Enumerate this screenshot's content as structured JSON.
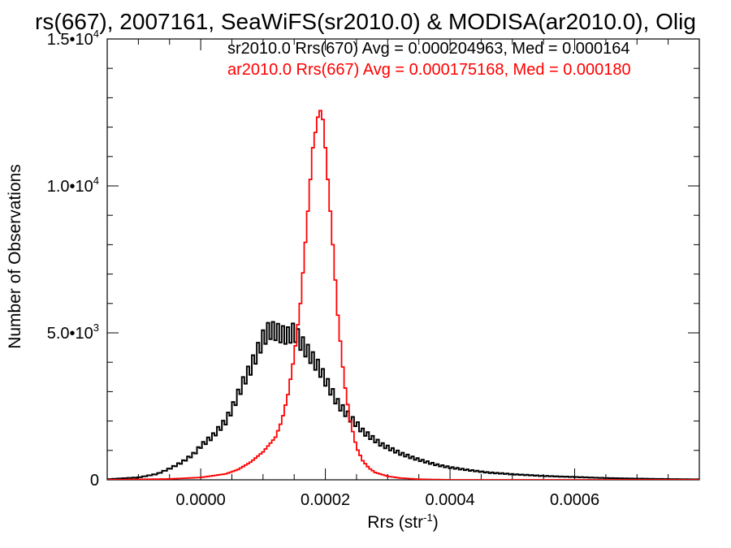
{
  "chart_data": {
    "type": "line",
    "title": "rs(667), 2007161, SeaWiFS(sr2010.0) & MODISA(ar2010.0), Olig",
    "xlabel": "Rrs (str",
    "xlabel_sup": "-1",
    "xlabel_end": ")",
    "ylabel": "Number of Observations",
    "xlim": [
      -0.00015,
      0.0008
    ],
    "ylim": [
      0,
      15000
    ],
    "x_ticks": [
      {
        "value": 0.0,
        "label": "0.0000"
      },
      {
        "value": 0.0002,
        "label": "0.0002"
      },
      {
        "value": 0.0004,
        "label": "0.0004"
      },
      {
        "value": 0.0006,
        "label": "0.0006"
      }
    ],
    "y_ticks": [
      {
        "value": 0,
        "label": "0",
        "exp": ""
      },
      {
        "value": 5000,
        "label": "5.0•10",
        "exp": "3"
      },
      {
        "value": 10000,
        "label": "1.0•10",
        "exp": "4"
      },
      {
        "value": 15000,
        "label": "1.5•10",
        "exp": "4"
      }
    ],
    "legend_position": "top-right",
    "series": [
      {
        "name": "sr2010.0 Rrs(670) Avg = 0.000204963, Med = 0.000164",
        "color": "#000000",
        "points": [
          [
            -0.00015,
            20
          ],
          [
            -0.0001,
            80
          ],
          [
            -7e-05,
            200
          ],
          [
            -5e-05,
            380
          ],
          [
            -3e-05,
            600
          ],
          [
            -1e-05,
            900
          ],
          [
            0.0,
            1150
          ],
          [
            2e-05,
            1500
          ],
          [
            4e-05,
            2000
          ],
          [
            5e-05,
            2400
          ],
          [
            6e-05,
            2900
          ],
          [
            7e-05,
            3400
          ],
          [
            8e-05,
            3800
          ],
          [
            9e-05,
            4300
          ],
          [
            0.0001,
            4800
          ],
          [
            0.00011,
            5100
          ],
          [
            0.00012,
            5050
          ],
          [
            0.00013,
            4950
          ],
          [
            0.00014,
            4900
          ],
          [
            0.00015,
            5050
          ],
          [
            0.00016,
            4700
          ],
          [
            0.00017,
            4400
          ],
          [
            0.00018,
            4100
          ],
          [
            0.00019,
            3800
          ],
          [
            0.0002,
            3400
          ],
          [
            0.00021,
            3000
          ],
          [
            0.00022,
            2600
          ],
          [
            0.00023,
            2350
          ],
          [
            0.00024,
            2100
          ],
          [
            0.00025,
            1900
          ],
          [
            0.00026,
            1650
          ],
          [
            0.00027,
            1500
          ],
          [
            0.00028,
            1350
          ],
          [
            0.00029,
            1200
          ],
          [
            0.0003,
            1100
          ],
          [
            0.00032,
            900
          ],
          [
            0.00034,
            750
          ],
          [
            0.00036,
            620
          ],
          [
            0.00038,
            500
          ],
          [
            0.0004,
            420
          ],
          [
            0.00043,
            330
          ],
          [
            0.00046,
            250
          ],
          [
            0.0005,
            190
          ],
          [
            0.00055,
            130
          ],
          [
            0.0006,
            95
          ],
          [
            0.00065,
            60
          ],
          [
            0.0007,
            40
          ],
          [
            0.00075,
            25
          ],
          [
            0.0008,
            15
          ]
        ]
      },
      {
        "name": "ar2010.0 Rrs(667) Avg = 0.000175168, Med = 0.000180",
        "color": "#ff0000",
        "points": [
          [
            -0.00015,
            0
          ],
          [
            -5e-05,
            30
          ],
          [
            0.0,
            80
          ],
          [
            4e-05,
            200
          ],
          [
            6e-05,
            350
          ],
          [
            8e-05,
            600
          ],
          [
            0.0001,
            950
          ],
          [
            0.00012,
            1450
          ],
          [
            0.00013,
            2000
          ],
          [
            0.00014,
            2900
          ],
          [
            0.00015,
            4200
          ],
          [
            0.00016,
            6000
          ],
          [
            0.00017,
            8600
          ],
          [
            0.00018,
            11300
          ],
          [
            0.00019,
            12600
          ],
          [
            0.000195,
            12500
          ],
          [
            0.0002,
            11300
          ],
          [
            0.00021,
            8600
          ],
          [
            0.00022,
            5600
          ],
          [
            0.00023,
            3400
          ],
          [
            0.00024,
            2000
          ],
          [
            0.00025,
            1100
          ],
          [
            0.00026,
            650
          ],
          [
            0.00027,
            400
          ],
          [
            0.00028,
            250
          ],
          [
            0.0003,
            120
          ],
          [
            0.00032,
            60
          ],
          [
            0.00035,
            20
          ],
          [
            0.0004,
            0
          ],
          [
            0.0008,
            0
          ]
        ]
      }
    ]
  }
}
